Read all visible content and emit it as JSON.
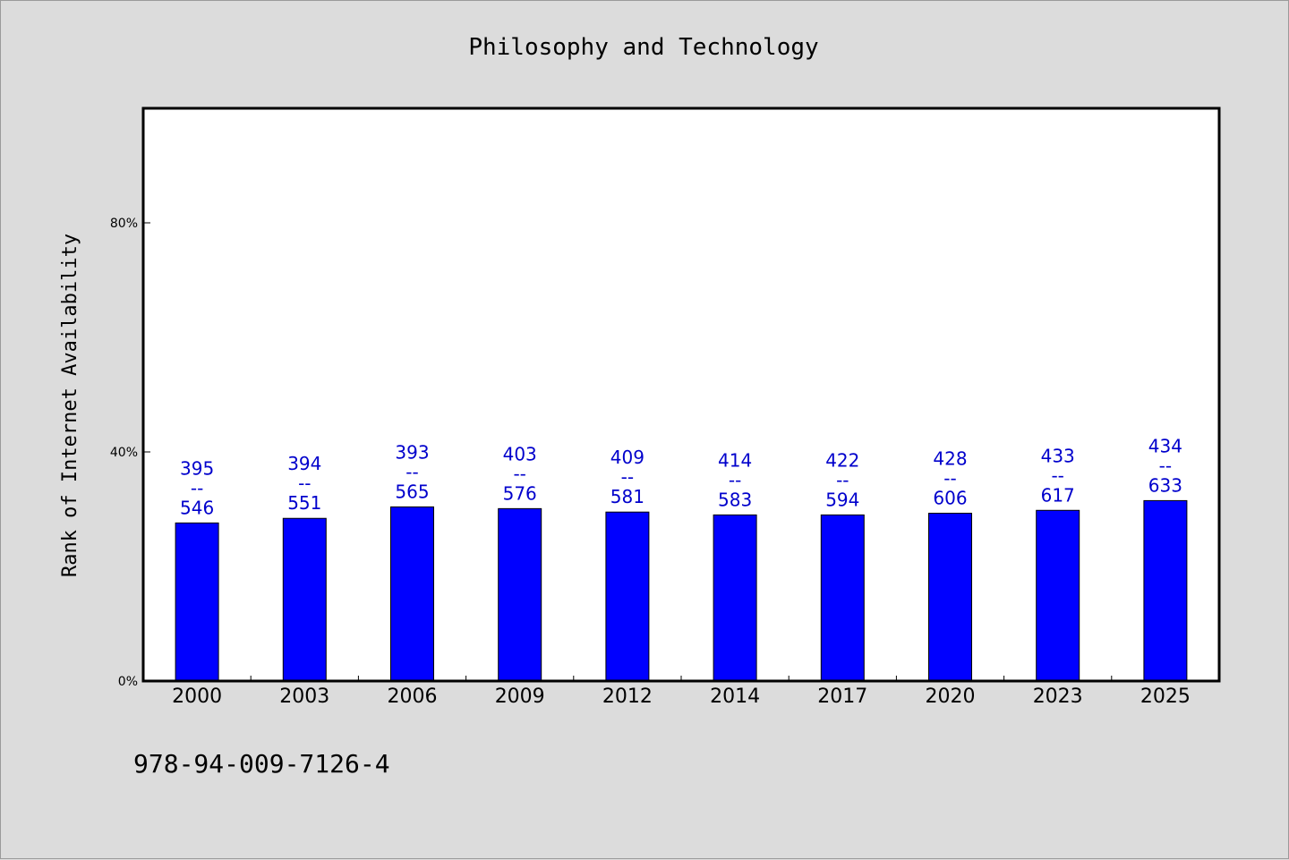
{
  "chart_data": {
    "type": "bar",
    "title": "Philosophy and Technology",
    "xlabel": "",
    "ylabel": "Rank of Internet Availability",
    "categories": [
      "2000",
      "2003",
      "2006",
      "2009",
      "2012",
      "2014",
      "2017",
      "2020",
      "2023",
      "2025"
    ],
    "values": [
      0.276,
      0.284,
      0.304,
      0.301,
      0.295,
      0.29,
      0.29,
      0.293,
      0.298,
      0.315
    ],
    "upper_labels": [
      "395",
      "394",
      "393",
      "403",
      "409",
      "414",
      "422",
      "428",
      "433",
      "434"
    ],
    "lower_labels": [
      "546",
      "551",
      "565",
      "576",
      "581",
      "583",
      "594",
      "606",
      "617",
      "633"
    ],
    "label_separator": "--",
    "ylim": [
      0,
      1.0
    ],
    "yticks": [
      0,
      0.4,
      0.8
    ],
    "ytick_labels": [
      "0%",
      "40%",
      "80%"
    ],
    "grid": false,
    "bar_color": "#0000ff",
    "label_color": "#0000cc",
    "background_color": "#dcdcdc",
    "plot_background": "#ffffff"
  },
  "footer": {
    "isbn": "978-94-009-7126-4"
  }
}
